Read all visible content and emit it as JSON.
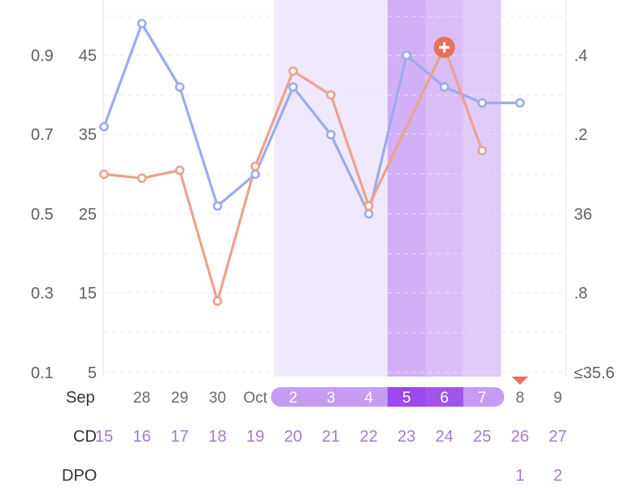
{
  "chart_data": {
    "type": "line",
    "left_axis_outer_ticks": [
      "0.9",
      "0.7",
      "0.5",
      "0.3",
      "0.1"
    ],
    "left_axis_inner_ticks": [
      "45",
      "35",
      "25",
      "15",
      "5"
    ],
    "left_axis_inner_range": [
      5,
      45
    ],
    "right_axis_ticks": [
      ".4",
      ".2",
      "36",
      ".8",
      "≤35.6"
    ],
    "right_axis_range": [
      35.6,
      36.4
    ],
    "x_labels": [
      "",
      "28",
      "29",
      "30",
      "Oct",
      "2",
      "3",
      "4",
      "5",
      "6",
      "7",
      "8",
      "9"
    ],
    "month_label": "Sep",
    "rows": {
      "cd_label": "CD",
      "cd_values": [
        "15",
        "16",
        "17",
        "18",
        "19",
        "20",
        "21",
        "22",
        "23",
        "24",
        "25",
        "26",
        "27"
      ],
      "dpo_label": "DPO",
      "dpo_values": [
        "",
        "",
        "",
        "",
        "",
        "",
        "",
        "",
        "",
        "",
        "",
        "1",
        "2"
      ]
    },
    "series": [
      {
        "color": "#9cabee",
        "axis": "left_inner",
        "values": [
          36,
          49,
          41,
          26,
          30,
          41,
          35,
          25,
          45,
          41,
          39,
          39
        ]
      },
      {
        "color": "#eba28e",
        "axis": "left_inner",
        "values": [
          30,
          29.5,
          30.5,
          14,
          31,
          43,
          40,
          26,
          null,
          46,
          33
        ]
      }
    ],
    "fertile_window": {
      "start_index": 5,
      "end_index": 10
    },
    "peak_window": {
      "start_index": 8,
      "end_index": 9
    },
    "ovulation_marker_index": 9,
    "ovulation_marker_icon": "plus-icon",
    "period_marker_index": 11,
    "period_marker_icon": "triangle-down-icon",
    "colors": {
      "fertile_band": "#f0e8fc",
      "fertile_band_edge": "#e0ccf8",
      "peak_band": "#d9bdf7",
      "peak_band_dark": "#caa6f4",
      "pill": "#c49df3",
      "pill_peak": "#9b48ec",
      "pill_peak_light": "#a560ef",
      "marker_red": "#ea6e58",
      "cycle_text": "#a77cc9"
    }
  }
}
